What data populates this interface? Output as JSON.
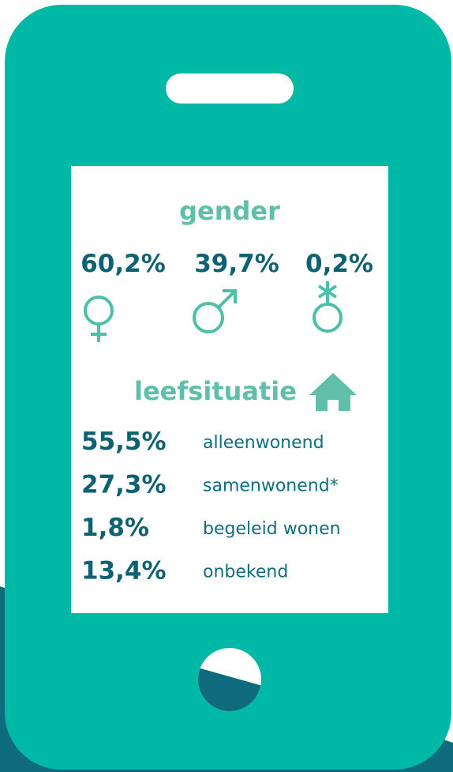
{
  "gender": {
    "title": "gender",
    "items": [
      "60,2%",
      "39,7%",
      "0,2%"
    ]
  },
  "living": {
    "title": "leefsituatie",
    "rows": [
      {
        "value": "55,5%",
        "label": "alleenwonend"
      },
      {
        "value": "27,3%",
        "label": "samenwonend*"
      },
      {
        "value": "1,8%",
        "label": "begeleid wonen"
      },
      {
        "value": "13,4%",
        "label": "onbekend"
      }
    ]
  }
}
